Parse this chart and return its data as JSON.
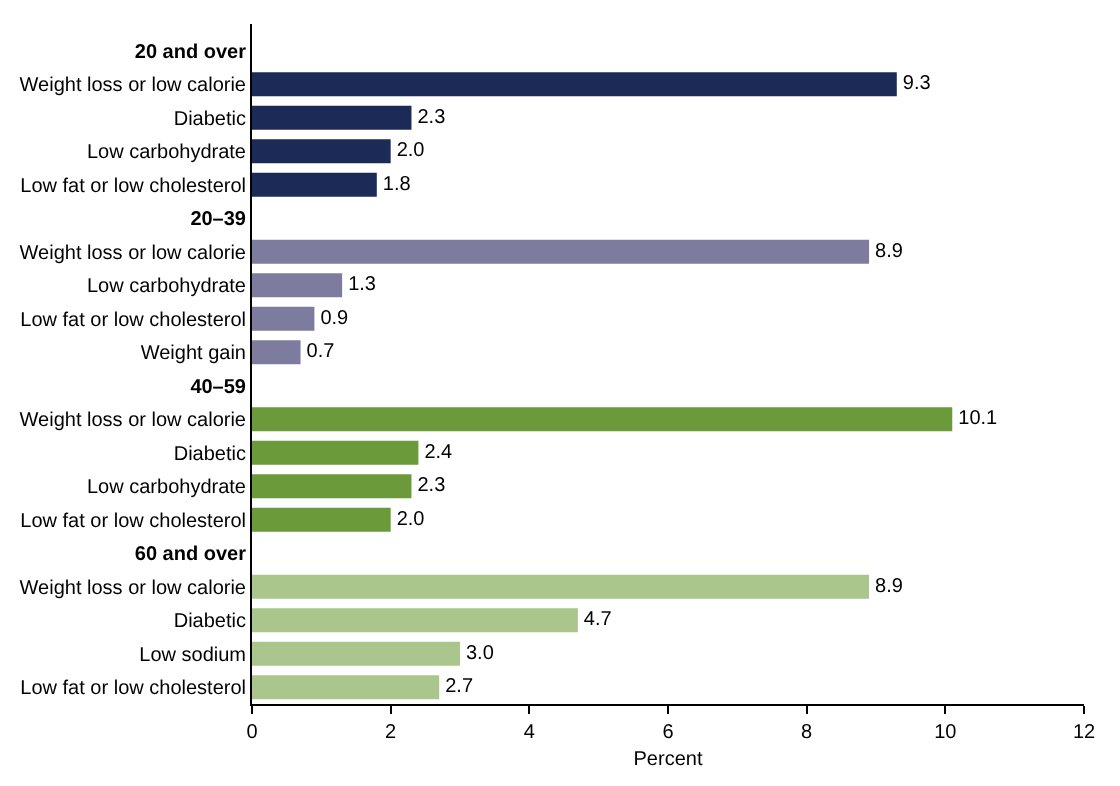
{
  "chart_data": {
    "type": "bar",
    "orientation": "horizontal",
    "xlabel": "Percent",
    "categories": [
      "20 and over",
      "Weight loss or low calorie",
      "Diabetic",
      "Low carbohydrate",
      "Low fat or low cholesterol",
      "20–39",
      "Weight loss or low calorie",
      "Low carbohydrate",
      "Low fat or low cholesterol",
      "Weight gain",
      "40–59",
      "Weight loss or low calorie",
      "Diabetic",
      "Low carbohydrate",
      "Low fat or low cholesterol",
      "60 and over",
      "Weight loss or low calorie",
      "Diabetic",
      "Low sodium",
      "Low fat or low cholesterol"
    ],
    "values": [
      null,
      9.3,
      2.3,
      2.0,
      1.8,
      null,
      8.9,
      1.3,
      0.9,
      0.7,
      null,
      10.1,
      2.4,
      2.3,
      2.0,
      null,
      8.9,
      4.7,
      3.0,
      2.7
    ],
    "colors": [
      null,
      "#1b2a57",
      "#1b2a57",
      "#1b2a57",
      "#1b2a57",
      null,
      "#7e7c9e",
      "#7e7c9e",
      "#7e7c9e",
      "#7e7c9e",
      null,
      "#6a9a3a",
      "#6a9a3a",
      "#6a9a3a",
      "#6a9a3a",
      null,
      "#abc68c",
      "#abc68c",
      "#abc68c",
      "#abc68c"
    ],
    "value_labels": [
      null,
      "9.3",
      "2.3",
      "2.0",
      "1.8",
      null,
      "8.9",
      "1.3",
      "0.9",
      "0.7",
      null,
      "10.1",
      "2.4",
      "2.3",
      "2.0",
      null,
      "8.9",
      "4.7",
      "3.0",
      "2.7"
    ],
    "xlim": [
      0,
      12
    ],
    "xticks": [
      0,
      2,
      4,
      6,
      8,
      10,
      12
    ]
  }
}
